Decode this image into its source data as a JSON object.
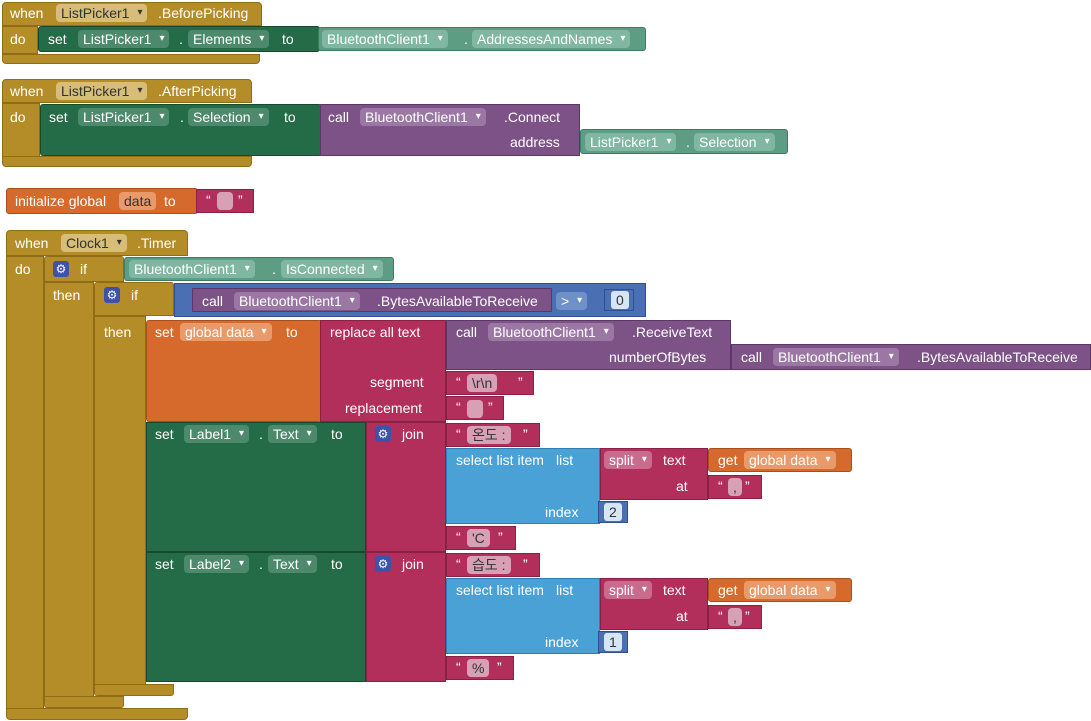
{
  "kw": {
    "when": "when",
    "do": "do",
    "set": "set",
    "to": "to",
    "call": "call",
    "address": "address",
    "initialize_global": "initialize global",
    "if": "if",
    "then": "then",
    "replace_all_text": "replace all text",
    "segment": "segment",
    "replacement": "replacement",
    "join": "join",
    "select_list_item": "select list item",
    "list": "list",
    "index": "index",
    "split": "split",
    "text": "text",
    "at": "at",
    "get": "get",
    "number_of_bytes": "numberOfBytes",
    "dot": "."
  },
  "blocks": {
    "before_picking": {
      "component": "ListPicker1",
      "event": ".BeforePicking",
      "set_component": "ListPicker1",
      "set_prop": "Elements",
      "bt_component": "BluetoothClient1",
      "bt_prop": "AddressesAndNames"
    },
    "after_picking": {
      "component": "ListPicker1",
      "event": ".AfterPicking",
      "set_component": "ListPicker1",
      "set_prop": "Selection",
      "bt_component": "BluetoothClient1",
      "method": ".Connect",
      "arg_component": "ListPicker1",
      "arg_prop": "Selection"
    },
    "init_global": {
      "name": "data",
      "value": ""
    },
    "timer": {
      "component": "Clock1",
      "event": ".Timer",
      "cond_component": "BluetoothClient1",
      "cond_prop": "IsConnected",
      "bytes_component": "BluetoothClient1",
      "bytes_method": ".BytesAvailableToReceive",
      "op": ">",
      "zero": "0",
      "set_var": "global data",
      "recv_component": "BluetoothClient1",
      "recv_method": ".ReceiveText",
      "nb_component": "BluetoothClient1",
      "nb_method": ".BytesAvailableToReceive",
      "segment": "\\r\\n",
      "replacement": "",
      "label1": "Label1",
      "label1_prop": "Text",
      "label1_prefix": "온도 : ",
      "get_var1": "global data",
      "sep1": ",",
      "index1": "2",
      "suffix1": "'C",
      "label2": "Label2",
      "label2_prop": "Text",
      "label2_prefix": "습도 : ",
      "get_var2": "global data",
      "sep2": ",",
      "index2": "1",
      "suffix2": "%"
    }
  }
}
